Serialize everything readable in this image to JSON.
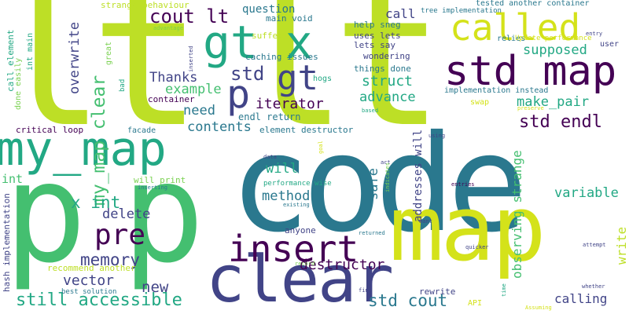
{
  "palette": {
    "dark_purple": "#440154",
    "indigo": "#414487",
    "blue": "#2a788e",
    "teal": "#22a884",
    "green": "#44bf70",
    "lime": "#7ad151",
    "yellow_green": "#bddf26",
    "yellow": "#d4e21a"
  },
  "words": [
    {
      "text": "lt",
      "color": "yellow_green"
    },
    {
      "text": "lt",
      "color": "yellow_green"
    },
    {
      "text": "code",
      "color": "blue"
    },
    {
      "text": "p",
      "color": "green"
    },
    {
      "text": "p",
      "color": "green"
    },
    {
      "text": "map",
      "color": "yellow"
    },
    {
      "text": "my_map",
      "color": "teal"
    },
    {
      "text": "clear",
      "color": "indigo"
    },
    {
      "text": "std map",
      "color": "dark_purple"
    },
    {
      "text": "called",
      "color": "yellow"
    },
    {
      "text": "gt x",
      "color": "teal"
    },
    {
      "text": "gt",
      "color": "indigo"
    },
    {
      "text": "p",
      "color": "indigo"
    },
    {
      "text": "insert",
      "color": "dark_purple"
    },
    {
      "text": "pre",
      "color": "dark_purple"
    },
    {
      "text": "cout lt",
      "color": "dark_purple"
    },
    {
      "text": "std",
      "color": "indigo"
    },
    {
      "text": "std endl",
      "color": "dark_purple"
    },
    {
      "text": "still accessible",
      "color": "teal"
    },
    {
      "text": "std cout",
      "color": "blue"
    },
    {
      "text": "memory",
      "color": "indigo"
    },
    {
      "text": "iterator",
      "color": "dark_purple"
    },
    {
      "text": "supposed",
      "color": "teal"
    },
    {
      "text": "destructor",
      "color": "dark_purple"
    },
    {
      "text": "my_map clear",
      "color": "green"
    },
    {
      "text": "x int",
      "color": "teal"
    },
    {
      "text": "vector",
      "color": "indigo"
    },
    {
      "text": "new",
      "color": "indigo"
    },
    {
      "text": "struct",
      "color": "teal"
    },
    {
      "text": "advance",
      "color": "teal"
    },
    {
      "text": "make_pair",
      "color": "teal"
    },
    {
      "text": "Thanks",
      "color": "indigo"
    },
    {
      "text": "example",
      "color": "green"
    },
    {
      "text": "contents",
      "color": "blue"
    },
    {
      "text": "need",
      "color": "blue"
    },
    {
      "text": "method",
      "color": "blue"
    },
    {
      "text": "will",
      "color": "teal"
    },
    {
      "text": "delete",
      "color": "indigo"
    },
    {
      "text": "variable",
      "color": "teal"
    },
    {
      "text": "overwrite",
      "color": "indigo"
    },
    {
      "text": "question",
      "color": "blue"
    },
    {
      "text": "call",
      "color": "indigo"
    },
    {
      "text": "calling",
      "color": "indigo"
    },
    {
      "text": "safe",
      "color": "blue"
    },
    {
      "text": "observing strange",
      "color": "green"
    },
    {
      "text": "write",
      "color": "yellow_green"
    },
    {
      "text": "addresses will",
      "color": "indigo"
    },
    {
      "text": "int",
      "color": "green"
    },
    {
      "text": "caching issues",
      "color": "blue"
    },
    {
      "text": "things done",
      "color": "blue"
    },
    {
      "text": "wondering",
      "color": "indigo"
    },
    {
      "text": "help sneg",
      "color": "blue"
    },
    {
      "text": "uses lets",
      "color": "indigo"
    },
    {
      "text": "lets say",
      "color": "indigo"
    },
    {
      "text": "main void",
      "color": "blue"
    },
    {
      "text": "strange behaviour",
      "color": "yellow_green"
    },
    {
      "text": "suffer",
      "color": "yellow_green"
    },
    {
      "text": "tested another container",
      "color": "blue"
    },
    {
      "text": "tree implementation",
      "color": "blue"
    },
    {
      "text": "relies",
      "color": "blue"
    },
    {
      "text": "implementation instead",
      "color": "blue"
    },
    {
      "text": "Update performance",
      "color": "yellow"
    },
    {
      "text": "swap",
      "color": "yellow"
    },
    {
      "text": "element destructor",
      "color": "blue"
    },
    {
      "text": "endl return",
      "color": "blue"
    },
    {
      "text": "container",
      "color": "dark_purple"
    },
    {
      "text": "critical loop",
      "color": "dark_purple"
    },
    {
      "text": "facade",
      "color": "blue"
    },
    {
      "text": "will print",
      "color": "lime"
    },
    {
      "text": "performance wise",
      "color": "teal"
    },
    {
      "text": "anyone",
      "color": "indigo"
    },
    {
      "text": "recommend another",
      "color": "yellow_green"
    },
    {
      "text": "best solution",
      "color": "blue"
    },
    {
      "text": "hash implementation",
      "color": "indigo"
    },
    {
      "text": "call element",
      "color": "teal"
    },
    {
      "text": "done easily",
      "color": "lime"
    },
    {
      "text": "int main",
      "color": "teal"
    },
    {
      "text": "great",
      "color": "lime"
    },
    {
      "text": "bad",
      "color": "teal"
    },
    {
      "text": "hogs",
      "color": "teal"
    },
    {
      "text": "rewrite",
      "color": "indigo"
    },
    {
      "text": "API",
      "color": "yellow"
    },
    {
      "text": "user",
      "color": "indigo"
    },
    {
      "text": "entry",
      "color": "indigo"
    },
    {
      "text": "advantage",
      "color": "lime"
    },
    {
      "text": "inserted",
      "color": "indigo"
    },
    {
      "text": "based",
      "color": "teal"
    },
    {
      "text": "preserve",
      "color": "yellow"
    },
    {
      "text": "using",
      "color": "indigo"
    },
    {
      "text": "goal",
      "color": "yellow"
    },
    {
      "text": "data",
      "color": "indigo"
    },
    {
      "text": "act",
      "color": "indigo"
    },
    {
      "text": "indicates",
      "color": "lime"
    },
    {
      "text": "entries",
      "color": "dark_purple"
    },
    {
      "text": "inserting",
      "color": "blue"
    },
    {
      "text": "existing",
      "color": "blue"
    },
    {
      "text": "returned",
      "color": "blue"
    },
    {
      "text": "want",
      "color": "indigo"
    },
    {
      "text": "quicker",
      "color": "indigo"
    },
    {
      "text": "attempt",
      "color": "indigo"
    },
    {
      "text": "record",
      "color": "lime"
    },
    {
      "text": "find",
      "color": "indigo"
    },
    {
      "text": "time",
      "color": "teal"
    },
    {
      "text": "whether",
      "color": "indigo"
    },
    {
      "text": "Assuming",
      "color": "yellow"
    }
  ]
}
